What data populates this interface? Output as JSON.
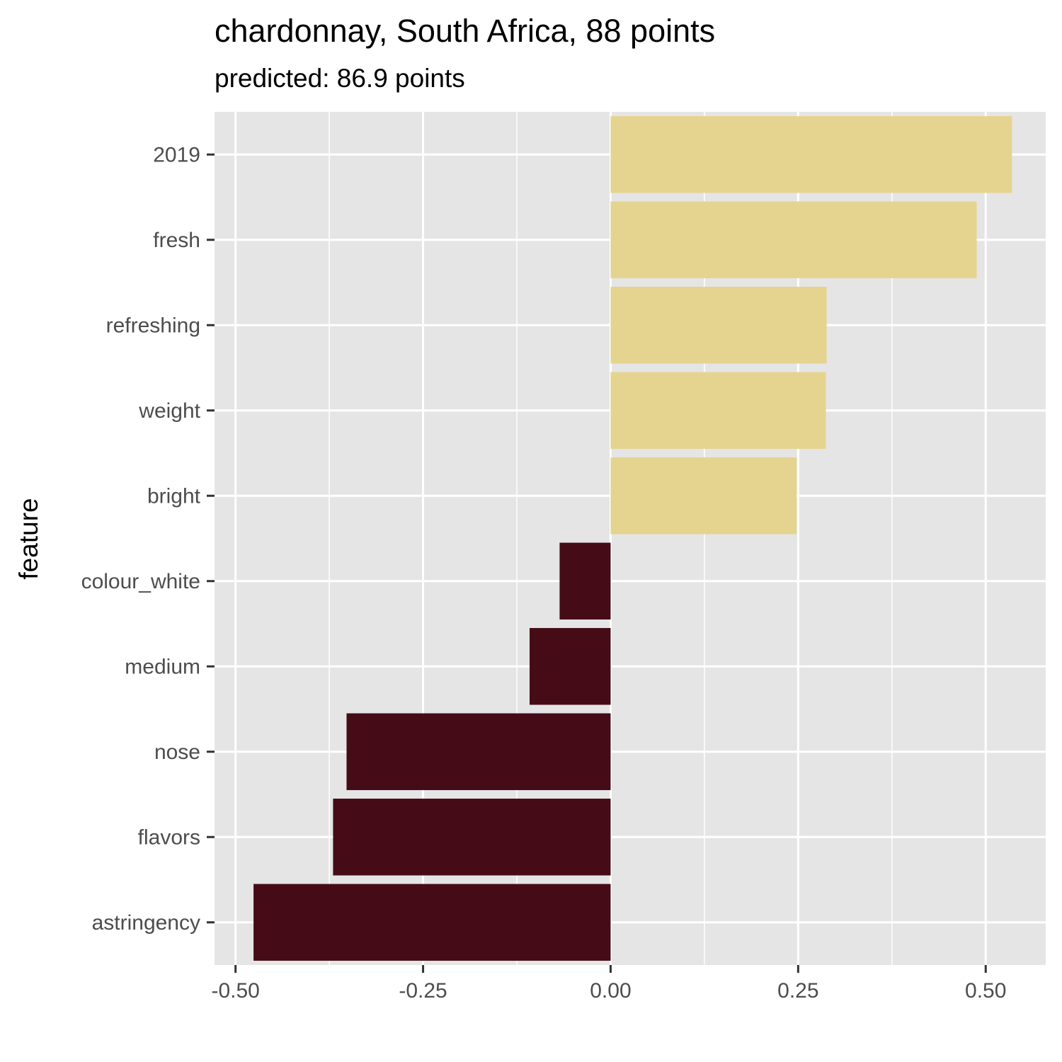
{
  "chart_data": {
    "type": "bar",
    "orientation": "horizontal",
    "title": "chardonnay, South Africa, 88 points",
    "subtitle": "predicted: 86.9 points",
    "xlabel": "",
    "ylabel": "feature",
    "xlim": [
      -0.528,
      0.58
    ],
    "xticks": [
      -0.5,
      -0.25,
      0.0,
      0.25,
      0.5
    ],
    "xtick_labels": [
      "-0.50",
      "-0.25",
      "0.00",
      "0.25",
      "0.50"
    ],
    "grid": true,
    "legend": "none",
    "positive_color": "#E5D490",
    "negative_color": "#450C17",
    "panel_color": "#E5E5E5",
    "categories": [
      "2019",
      "fresh",
      "refreshing",
      "weight",
      "bright",
      "colour_white",
      "medium",
      "nose",
      "flavors",
      "astringency"
    ],
    "values": [
      0.535,
      0.488,
      0.288,
      0.287,
      0.248,
      -0.068,
      -0.108,
      -0.352,
      -0.37,
      -0.476
    ]
  }
}
